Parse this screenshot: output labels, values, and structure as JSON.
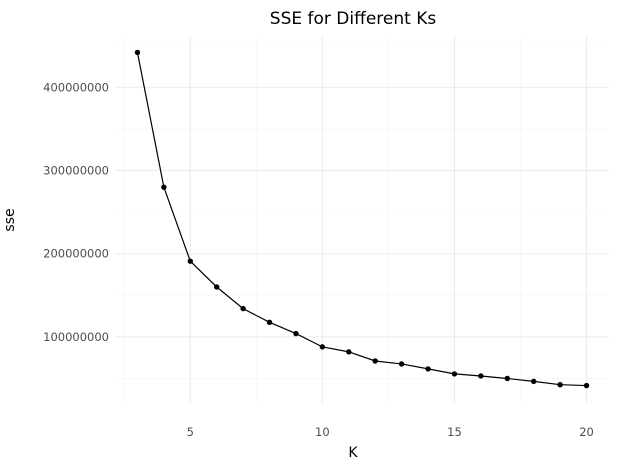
{
  "chart_data": {
    "type": "line",
    "title": "SSE for Different Ks",
    "xlabel": "K",
    "ylabel": "sse",
    "x": [
      3,
      4,
      5,
      6,
      7,
      8,
      9,
      10,
      11,
      12,
      13,
      14,
      15,
      16,
      17,
      18,
      19,
      20
    ],
    "series": [
      {
        "values": [
          442000000,
          280000000,
          191000000,
          160000000,
          134000000,
          117500000,
          104000000,
          88000000,
          82000000,
          71000000,
          67500000,
          61500000,
          55500000,
          53000000,
          50000000,
          46500000,
          42500000,
          41500000
        ]
      }
    ],
    "xlim": [
      2.15,
      20.85
    ],
    "ylim": [
      20500000,
      463000000
    ],
    "xticks": [
      5,
      10,
      15,
      20
    ],
    "xtick_labels": [
      "5",
      "10",
      "15",
      "20"
    ],
    "yticks": [
      100000000,
      200000000,
      300000000,
      400000000
    ],
    "ytick_labels": [
      "100000000",
      "200000000",
      "300000000",
      "400000000"
    ],
    "grid": true,
    "legend": "none",
    "colors": {
      "line": "#000000",
      "point": "#000000",
      "grid": "#ebebeb",
      "tick_text": "#4d4d4d"
    }
  }
}
